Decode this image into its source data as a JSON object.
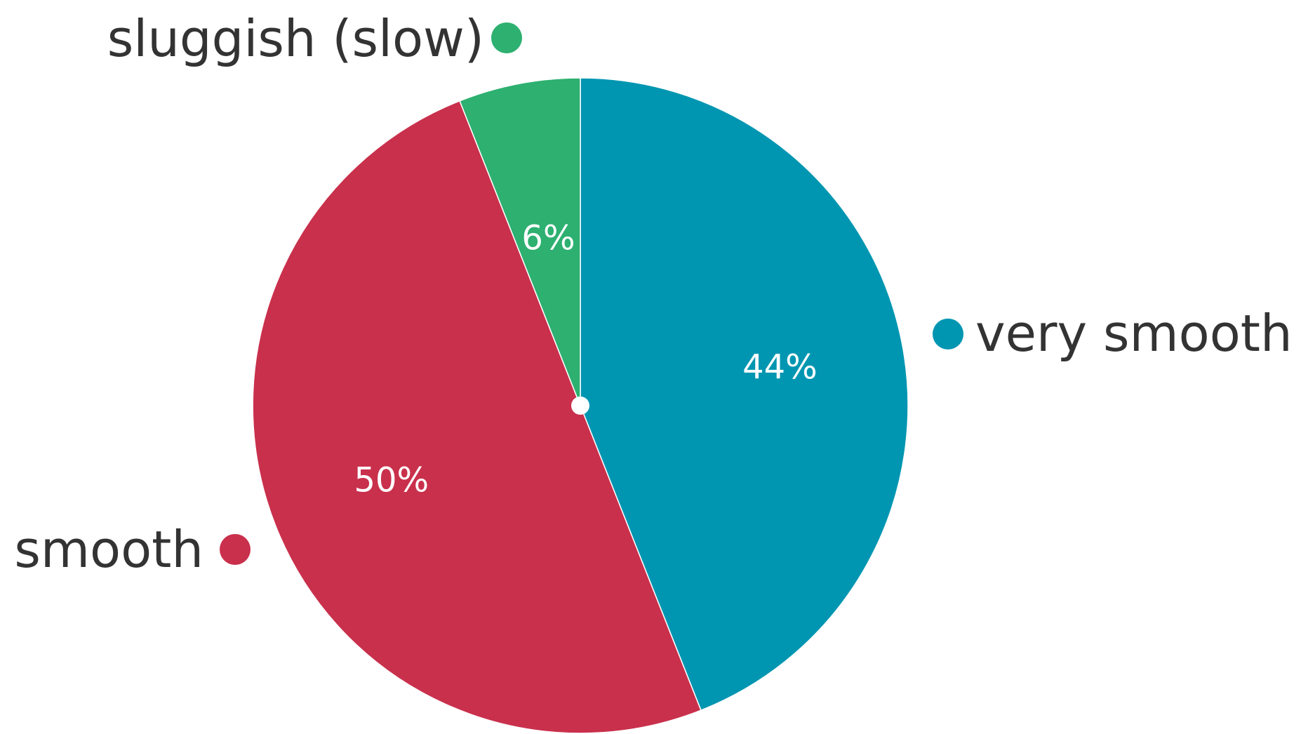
{
  "chart_data": {
    "type": "pie",
    "start": "top",
    "direction": "clockwise",
    "slices": [
      {
        "label": "very smooth",
        "value": 44,
        "display": "44%",
        "color": "#0096B1"
      },
      {
        "label": "smooth",
        "value": 50,
        "display": "50%",
        "color": "#C9304C"
      },
      {
        "label": "sluggish (slow)",
        "value": 6,
        "display": "6%",
        "color": "#2DB070"
      }
    ]
  }
}
